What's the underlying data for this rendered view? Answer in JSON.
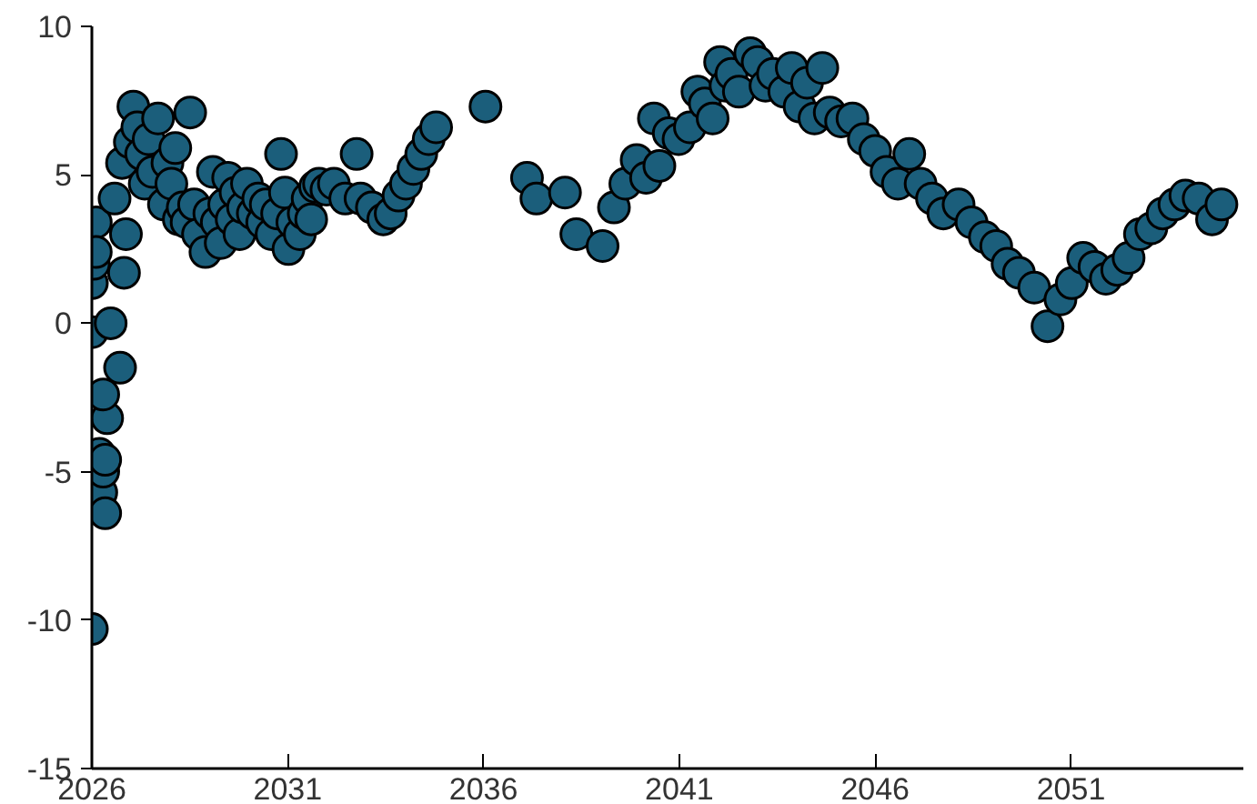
{
  "chart_data": {
    "type": "scatter",
    "marker": "circle",
    "grid": false,
    "xlim": [
      2026,
      2055.4
    ],
    "xticks": [
      2026,
      2031,
      2036,
      2041,
      2046,
      2051
    ],
    "ylim": [
      -15,
      10
    ],
    "yticks": [
      -15,
      -10,
      -5,
      0,
      5,
      10
    ],
    "series": [
      {
        "color": "#1b5e7b",
        "x": [
          2026.0,
          2026.0,
          2026.0,
          2026.05,
          2026.1,
          2026.1,
          2026.19,
          2026.24,
          2026.29,
          2026.34,
          2026.34,
          2026.39,
          2026.29,
          2026.48,
          2026.58,
          2026.72,
          2026.82,
          2026.87,
          2026.77,
          2026.97,
          2027.06,
          2027.16,
          2027.26,
          2027.35,
          2027.45,
          2027.55,
          2027.69,
          2027.84,
          2027.93,
          2028.03,
          2028.13,
          2028.22,
          2028.32,
          2028.42,
          2028.51,
          2028.61,
          2028.71,
          2028.9,
          2029.0,
          2029.09,
          2029.19,
          2029.29,
          2029.38,
          2029.48,
          2029.57,
          2029.67,
          2029.77,
          2029.86,
          2029.96,
          2030.11,
          2030.25,
          2030.35,
          2030.44,
          2030.59,
          2030.73,
          2030.83,
          2030.93,
          2031.02,
          2031.12,
          2031.31,
          2031.41,
          2031.51,
          2031.6,
          2031.7,
          2031.8,
          2031.99,
          2032.18,
          2032.47,
          2032.76,
          2032.86,
          2033.15,
          2033.44,
          2033.63,
          2033.83,
          2034.02,
          2034.21,
          2034.41,
          2034.6,
          2034.79,
          2036.05,
          2037.11,
          2037.35,
          2038.08,
          2038.37,
          2039.04,
          2039.33,
          2039.62,
          2039.91,
          2040.15,
          2040.35,
          2040.49,
          2040.73,
          2040.98,
          2041.27,
          2041.46,
          2041.65,
          2041.85,
          2042.04,
          2042.18,
          2042.33,
          2042.52,
          2042.81,
          2043.0,
          2043.2,
          2043.39,
          2043.68,
          2043.87,
          2044.07,
          2044.26,
          2044.45,
          2044.65,
          2044.84,
          2045.13,
          2045.42,
          2045.71,
          2046.0,
          2046.29,
          2046.58,
          2046.87,
          2047.16,
          2047.45,
          2047.74,
          2048.13,
          2048.46,
          2048.8,
          2049.09,
          2049.38,
          2049.67,
          2050.06,
          2050.4,
          2050.73,
          2051.02,
          2051.31,
          2051.6,
          2051.89,
          2052.18,
          2052.47,
          2052.76,
          2053.05,
          2053.34,
          2053.64,
          2053.92,
          2054.26,
          2054.6,
          2054.84
        ],
        "values": [
          -10.3,
          -0.3,
          1.35,
          2,
          3.4,
          2.4,
          -4.4,
          -5.7,
          -5,
          -6.4,
          -4.6,
          -3.2,
          -2.4,
          0,
          4.2,
          -1.5,
          1.7,
          3,
          5.4,
          6.1,
          7.3,
          6.6,
          5.7,
          4.7,
          6.2,
          5.1,
          6.9,
          4,
          5.4,
          4.7,
          5.9,
          3.5,
          3.9,
          3.4,
          7.1,
          4,
          3,
          2.4,
          3.7,
          5.1,
          3.4,
          2.7,
          4,
          4.9,
          3.5,
          4.4,
          3,
          3.9,
          4.7,
          3.7,
          4.2,
          3.4,
          4,
          3,
          3.7,
          5.7,
          4.4,
          2.5,
          3.4,
          3,
          3.7,
          4.2,
          3.5,
          4.6,
          4.7,
          4.5,
          4.7,
          4.2,
          5.7,
          4.2,
          3.9,
          3.5,
          3.7,
          4.3,
          4.7,
          5.2,
          5.7,
          6.2,
          6.6,
          7.3,
          4.9,
          4.2,
          4.4,
          3,
          2.6,
          3.9,
          4.7,
          5.5,
          4.9,
          6.9,
          5.3,
          6.4,
          6.2,
          6.6,
          7.8,
          7.4,
          6.9,
          8.8,
          8,
          8.4,
          7.8,
          9.1,
          8.8,
          8,
          8.4,
          7.8,
          8.6,
          7.3,
          8.1,
          6.9,
          8.6,
          7.1,
          6.8,
          6.9,
          6.2,
          5.8,
          5.1,
          4.7,
          5.7,
          4.7,
          4.2,
          3.7,
          4,
          3.4,
          2.9,
          2.6,
          2,
          1.7,
          1.2,
          -0.1,
          0.8,
          1.35,
          2.2,
          1.9,
          1.5,
          1.8,
          2.2,
          3,
          3.2,
          3.7,
          4,
          4.3,
          4.2,
          3.5,
          4
        ]
      }
    ]
  }
}
